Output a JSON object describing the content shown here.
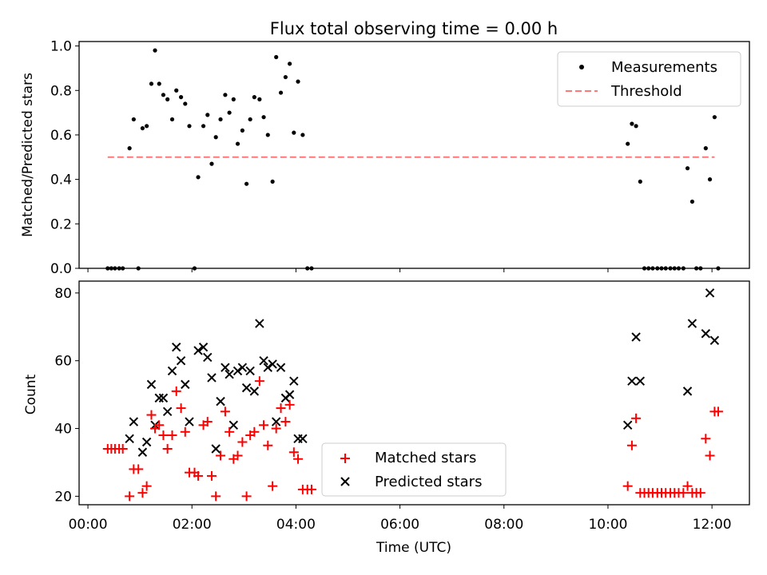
{
  "chart_data": [
    {
      "type": "scatter",
      "title": "Flux total observing time = 0.00 h",
      "xlabel": "",
      "ylabel": "Matched/Predicted stars",
      "xlim": [
        -0.17,
        12.72
      ],
      "ylim": [
        0.0,
        1.02
      ],
      "x_axis": "time_hours_utc",
      "yticks": [
        0.0,
        0.2,
        0.4,
        0.6,
        0.8,
        1.0
      ],
      "ytick_labels": [
        "0.0",
        "0.2",
        "0.4",
        "0.6",
        "0.8",
        "1.0"
      ],
      "legend": {
        "position": "top-right",
        "entries": [
          "Measurements",
          "Threshold"
        ]
      },
      "series": [
        {
          "name": "Measurements",
          "marker": "dot",
          "color": "#000000",
          "points": [
            [
              0.38,
              0
            ],
            [
              0.45,
              0
            ],
            [
              0.52,
              0
            ],
            [
              0.6,
              0
            ],
            [
              0.67,
              0
            ],
            [
              0.8,
              0.54
            ],
            [
              0.88,
              0.67
            ],
            [
              0.97,
              0
            ],
            [
              1.05,
              0.63
            ],
            [
              1.13,
              0.64
            ],
            [
              1.22,
              0.83
            ],
            [
              1.29,
              0.98
            ],
            [
              1.37,
              0.83
            ],
            [
              1.45,
              0.78
            ],
            [
              1.53,
              0.76
            ],
            [
              1.62,
              0.67
            ],
            [
              1.7,
              0.8
            ],
            [
              1.79,
              0.77
            ],
            [
              1.87,
              0.74
            ],
            [
              1.95,
              0.64
            ],
            [
              2.05,
              0
            ],
            [
              2.12,
              0.41
            ],
            [
              2.22,
              0.64
            ],
            [
              2.3,
              0.69
            ],
            [
              2.38,
              0.47
            ],
            [
              2.46,
              0.59
            ],
            [
              2.55,
              0.67
            ],
            [
              2.64,
              0.78
            ],
            [
              2.72,
              0.7
            ],
            [
              2.8,
              0.76
            ],
            [
              2.88,
              0.56
            ],
            [
              2.97,
              0.62
            ],
            [
              3.05,
              0.38
            ],
            [
              3.12,
              0.67
            ],
            [
              3.2,
              0.77
            ],
            [
              3.3,
              0.76
            ],
            [
              3.38,
              0.68
            ],
            [
              3.46,
              0.6
            ],
            [
              3.55,
              0.39
            ],
            [
              3.62,
              0.95
            ],
            [
              3.71,
              0.79
            ],
            [
              3.8,
              0.86
            ],
            [
              3.88,
              0.92
            ],
            [
              3.96,
              0.61
            ],
            [
              4.04,
              0.84
            ],
            [
              4.13,
              0.6
            ],
            [
              4.22,
              0
            ],
            [
              4.3,
              0
            ],
            [
              10.38,
              0.56
            ],
            [
              10.46,
              0.65
            ],
            [
              10.54,
              0.64
            ],
            [
              10.62,
              0.39
            ],
            [
              10.7,
              0
            ],
            [
              10.78,
              0
            ],
            [
              10.86,
              0
            ],
            [
              10.95,
              0
            ],
            [
              11.03,
              0
            ],
            [
              11.11,
              0
            ],
            [
              11.2,
              0
            ],
            [
              11.28,
              0
            ],
            [
              11.36,
              0
            ],
            [
              11.45,
              0
            ],
            [
              11.53,
              0.45
            ],
            [
              11.62,
              0.3
            ],
            [
              11.7,
              0
            ],
            [
              11.78,
              0
            ],
            [
              11.88,
              0.54
            ],
            [
              11.96,
              0.4
            ],
            [
              12.05,
              0.68
            ],
            [
              12.12,
              0
            ]
          ]
        },
        {
          "name": "Threshold",
          "style": "dashed",
          "color": "#ff7777",
          "points": [
            [
              0.38,
              0.5
            ],
            [
              12.05,
              0.5
            ]
          ]
        }
      ]
    },
    {
      "type": "scatter",
      "title": "",
      "xlabel": "Time (UTC)",
      "ylabel": "Count",
      "xlim": [
        -0.17,
        12.72
      ],
      "ylim": [
        17.5,
        83.5
      ],
      "x_axis": "time_hours_utc",
      "xticks": [
        0,
        2,
        4,
        6,
        8,
        10,
        12
      ],
      "xtick_labels": [
        "00:00",
        "02:00",
        "04:00",
        "06:00",
        "08:00",
        "10:00",
        "12:00"
      ],
      "yticks": [
        20,
        40,
        60,
        80
      ],
      "ytick_labels": [
        "20",
        "40",
        "60",
        "80"
      ],
      "legend": {
        "position": "lower-center",
        "entries": [
          "Matched stars",
          "Predicted stars"
        ]
      },
      "series": [
        {
          "name": "Matched stars",
          "marker": "plus",
          "color": "#ff0000",
          "points": [
            [
              0.38,
              34
            ],
            [
              0.45,
              34
            ],
            [
              0.52,
              34
            ],
            [
              0.6,
              34
            ],
            [
              0.67,
              34
            ],
            [
              0.8,
              20
            ],
            [
              0.88,
              28
            ],
            [
              0.97,
              28
            ],
            [
              1.05,
              21
            ],
            [
              1.13,
              23
            ],
            [
              1.22,
              44
            ],
            [
              1.29,
              40
            ],
            [
              1.37,
              41
            ],
            [
              1.45,
              38
            ],
            [
              1.53,
              34
            ],
            [
              1.62,
              38
            ],
            [
              1.7,
              51
            ],
            [
              1.79,
              46
            ],
            [
              1.87,
              39
            ],
            [
              1.95,
              27
            ],
            [
              2.05,
              27
            ],
            [
              2.12,
              26
            ],
            [
              2.22,
              41
            ],
            [
              2.3,
              42
            ],
            [
              2.38,
              26
            ],
            [
              2.46,
              20
            ],
            [
              2.55,
              32
            ],
            [
              2.64,
              45
            ],
            [
              2.72,
              39
            ],
            [
              2.8,
              31
            ],
            [
              2.88,
              32
            ],
            [
              2.97,
              36
            ],
            [
              3.05,
              20
            ],
            [
              3.12,
              38
            ],
            [
              3.2,
              39
            ],
            [
              3.3,
              54
            ],
            [
              3.38,
              41
            ],
            [
              3.46,
              35
            ],
            [
              3.55,
              23
            ],
            [
              3.62,
              40
            ],
            [
              3.71,
              46
            ],
            [
              3.8,
              42
            ],
            [
              3.88,
              47
            ],
            [
              3.96,
              33
            ],
            [
              4.04,
              31
            ],
            [
              4.13,
              22
            ],
            [
              4.22,
              22
            ],
            [
              4.3,
              22
            ],
            [
              10.38,
              23
            ],
            [
              10.46,
              35
            ],
            [
              10.54,
              43
            ],
            [
              10.62,
              21
            ],
            [
              10.7,
              21
            ],
            [
              10.78,
              21
            ],
            [
              10.86,
              21
            ],
            [
              10.95,
              21
            ],
            [
              11.03,
              21
            ],
            [
              11.11,
              21
            ],
            [
              11.2,
              21
            ],
            [
              11.28,
              21
            ],
            [
              11.36,
              21
            ],
            [
              11.45,
              21
            ],
            [
              11.53,
              23
            ],
            [
              11.62,
              21
            ],
            [
              11.7,
              21
            ],
            [
              11.78,
              21
            ],
            [
              11.88,
              37
            ],
            [
              11.96,
              32
            ],
            [
              12.05,
              45
            ],
            [
              12.12,
              45
            ]
          ]
        },
        {
          "name": "Predicted stars",
          "marker": "x",
          "color": "#000000",
          "points": [
            [
              0.8,
              37
            ],
            [
              0.88,
              42
            ],
            [
              1.05,
              33
            ],
            [
              1.13,
              36
            ],
            [
              1.22,
              53
            ],
            [
              1.29,
              41
            ],
            [
              1.37,
              49
            ],
            [
              1.45,
              49
            ],
            [
              1.53,
              45
            ],
            [
              1.62,
              57
            ],
            [
              1.7,
              64
            ],
            [
              1.79,
              60
            ],
            [
              1.87,
              53
            ],
            [
              1.95,
              42
            ],
            [
              2.12,
              63
            ],
            [
              2.22,
              64
            ],
            [
              2.3,
              61
            ],
            [
              2.38,
              55
            ],
            [
              2.46,
              34
            ],
            [
              2.55,
              48
            ],
            [
              2.64,
              58
            ],
            [
              2.72,
              56
            ],
            [
              2.8,
              41
            ],
            [
              2.88,
              57
            ],
            [
              2.97,
              58
            ],
            [
              3.05,
              52
            ],
            [
              3.12,
              57
            ],
            [
              3.2,
              51
            ],
            [
              3.3,
              71
            ],
            [
              3.38,
              60
            ],
            [
              3.46,
              58
            ],
            [
              3.55,
              59
            ],
            [
              3.62,
              42
            ],
            [
              3.71,
              58
            ],
            [
              3.8,
              49
            ],
            [
              3.88,
              50
            ],
            [
              3.96,
              54
            ],
            [
              4.04,
              37
            ],
            [
              4.13,
              37
            ],
            [
              10.38,
              41
            ],
            [
              10.46,
              54
            ],
            [
              10.54,
              67
            ],
            [
              10.62,
              54
            ],
            [
              11.53,
              51
            ],
            [
              11.62,
              71
            ],
            [
              11.88,
              68
            ],
            [
              11.96,
              80
            ],
            [
              12.05,
              66
            ]
          ]
        }
      ]
    }
  ]
}
